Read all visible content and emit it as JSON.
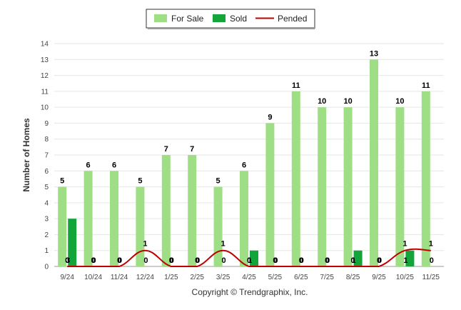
{
  "chart_data": {
    "type": "bar",
    "categories": [
      "9/24",
      "10/24",
      "11/24",
      "12/24",
      "1/25",
      "2/25",
      "3/25",
      "4/25",
      "5/25",
      "6/25",
      "7/25",
      "8/25",
      "9/25",
      "10/25",
      "11/25"
    ],
    "series": [
      {
        "name": "For Sale",
        "type": "bar",
        "color": "#9ede84",
        "values": [
          5,
          6,
          6,
          5,
          7,
          7,
          5,
          6,
          9,
          11,
          10,
          10,
          13,
          10,
          11
        ]
      },
      {
        "name": "Sold",
        "type": "bar",
        "color": "#14a53a",
        "values": [
          3,
          0,
          0,
          0,
          0,
          0,
          0,
          1,
          0,
          0,
          0,
          1,
          0,
          1,
          0
        ]
      },
      {
        "name": "Pended",
        "type": "line",
        "color": "#c00000",
        "values": [
          0,
          0,
          0,
          1,
          0,
          0,
          1,
          0,
          0,
          0,
          0,
          0,
          0,
          1,
          1
        ]
      }
    ],
    "ylabel": "Number of Homes",
    "xlabel": "",
    "ylim": [
      0,
      14
    ],
    "yticks": [
      0,
      1,
      2,
      3,
      4,
      5,
      6,
      7,
      8,
      9,
      10,
      11,
      12,
      13,
      14
    ],
    "grid": true,
    "legend_position": "top-center",
    "footer": "Copyright © Trendgraphix, Inc."
  }
}
